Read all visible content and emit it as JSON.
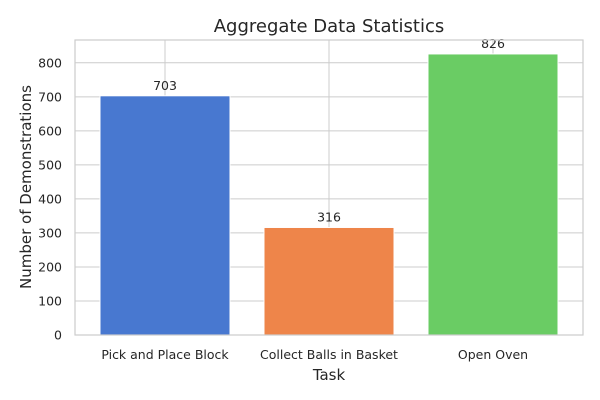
{
  "chart_data": {
    "type": "bar",
    "title": "Aggregate Data Statistics",
    "xlabel": "Task",
    "ylabel": "Number of Demonstrations",
    "categories": [
      "Pick and Place Block",
      "Collect Balls in Basket",
      "Open Oven"
    ],
    "values": [
      703,
      316,
      826
    ],
    "data_labels": [
      "703",
      "316",
      "826"
    ],
    "colors": [
      "#4878d0",
      "#ee854a",
      "#6acc64"
    ],
    "ylim": [
      0,
      867
    ],
    "yticks": [
      0,
      100,
      200,
      300,
      400,
      500,
      600,
      700,
      800
    ],
    "grid": true,
    "legend": "none"
  }
}
